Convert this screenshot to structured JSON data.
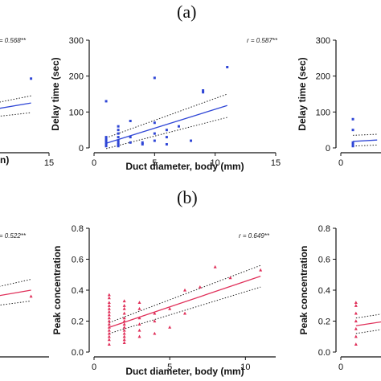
{
  "panel_labels": {
    "a": "(a)",
    "b": "(b)"
  },
  "colors": {
    "blue": "#2f46d6",
    "red": "#e0305a",
    "axis": "#111111",
    "ci": "#222222"
  },
  "chart_data": [
    {
      "id": "a-left",
      "type": "scatter",
      "partially_visible": true,
      "r_label": "r = 0.568**",
      "x_ticks": [
        "15"
      ],
      "xlabel_fragment": "n)",
      "xlim": [
        0,
        15
      ],
      "points": [
        [
          13,
          193
        ]
      ],
      "fit": {
        "x": [
          0,
          13
        ],
        "y": [
          70,
          125
        ]
      },
      "ci_upper": {
        "x": [
          0,
          13
        ],
        "y": [
          80,
          145
        ]
      },
      "ci_lower": {
        "x": [
          0,
          13
        ],
        "y": [
          62,
          98
        ]
      }
    },
    {
      "id": "a-center",
      "type": "scatter",
      "title": "",
      "xlabel": "Duct diameter, body (mm)",
      "ylabel": "Delay time (sec)",
      "r_label": "r = 0.587**",
      "xlim": [
        0,
        15
      ],
      "ylim": [
        0,
        300
      ],
      "x_ticks": [
        "0",
        "5",
        "10",
        "15"
      ],
      "y_ticks": [
        "0",
        "100",
        "200",
        "300"
      ],
      "color": "#2f46d6",
      "points": [
        [
          1,
          5
        ],
        [
          1,
          10
        ],
        [
          1,
          15
        ],
        [
          1,
          20
        ],
        [
          1,
          25
        ],
        [
          1,
          30
        ],
        [
          1,
          130
        ],
        [
          2,
          5
        ],
        [
          2,
          10
        ],
        [
          2,
          15
        ],
        [
          2,
          20
        ],
        [
          2,
          30
        ],
        [
          2,
          40
        ],
        [
          2,
          50
        ],
        [
          2,
          60
        ],
        [
          3,
          15
        ],
        [
          3,
          30
        ],
        [
          3,
          75
        ],
        [
          4,
          10
        ],
        [
          4,
          15
        ],
        [
          5,
          20
        ],
        [
          5,
          40
        ],
        [
          5,
          70
        ],
        [
          5,
          195
        ],
        [
          6,
          10
        ],
        [
          6,
          30
        ],
        [
          6,
          50
        ],
        [
          7,
          60
        ],
        [
          8,
          20
        ],
        [
          9,
          155
        ],
        [
          9,
          160
        ],
        [
          11,
          225
        ]
      ],
      "fit": {
        "x": [
          1,
          11
        ],
        "y": [
          13,
          118
        ]
      },
      "ci_upper": {
        "x": [
          1,
          11
        ],
        "y": [
          28,
          150
        ]
      },
      "ci_lower": {
        "x": [
          1,
          11
        ],
        "y": [
          -2,
          85
        ]
      }
    },
    {
      "id": "a-right",
      "type": "scatter",
      "partially_visible": true,
      "ylabel": "Delay time (sec)",
      "xlim": [
        0,
        15
      ],
      "ylim": [
        0,
        300
      ],
      "x_ticks": [
        "0"
      ],
      "y_ticks": [
        "0",
        "100",
        "200",
        "300"
      ],
      "points": [
        [
          1,
          5
        ],
        [
          1,
          10
        ],
        [
          1,
          15
        ],
        [
          1,
          50
        ],
        [
          1,
          80
        ]
      ],
      "fit": {
        "x": [
          1,
          3
        ],
        "y": [
          18,
          22
        ]
      },
      "ci_upper": {
        "x": [
          1,
          3
        ],
        "y": [
          35,
          38
        ]
      },
      "ci_lower": {
        "x": [
          1,
          3
        ],
        "y": [
          5,
          8
        ]
      }
    },
    {
      "id": "b-left",
      "type": "scatter",
      "partially_visible": true,
      "r_label": "r = 0.522**",
      "xlim": [
        0,
        15
      ],
      "points": [
        [
          13,
          0.36
        ]
      ],
      "fit": {
        "x": [
          0,
          13
        ],
        "y": [
          0.27,
          0.4
        ]
      },
      "ci_upper": {
        "x": [
          0,
          13
        ],
        "y": [
          0.3,
          0.47
        ]
      },
      "ci_lower": {
        "x": [
          0,
          13
        ],
        "y": [
          0.23,
          0.33
        ]
      }
    },
    {
      "id": "b-center",
      "type": "scatter",
      "xlabel": "Duct diameter, body (mm)",
      "ylabel": "Peak concentration",
      "r_label": "r = 0.649**",
      "xlim": [
        0,
        12
      ],
      "ylim": [
        0,
        0.8
      ],
      "x_ticks": [
        "0",
        "5",
        "10"
      ],
      "y_ticks": [
        "0.0",
        "0.2",
        "0.4",
        "0.6",
        "0.8"
      ],
      "color": "#e0305a",
      "points": [
        [
          1,
          0.05
        ],
        [
          1,
          0.08
        ],
        [
          1,
          0.1
        ],
        [
          1,
          0.12
        ],
        [
          1,
          0.14
        ],
        [
          1,
          0.16
        ],
        [
          1,
          0.18
        ],
        [
          1,
          0.2
        ],
        [
          1,
          0.22
        ],
        [
          1,
          0.24
        ],
        [
          1,
          0.26
        ],
        [
          1,
          0.28
        ],
        [
          1,
          0.3
        ],
        [
          1,
          0.32
        ],
        [
          1,
          0.35
        ],
        [
          1,
          0.37
        ],
        [
          2,
          0.06
        ],
        [
          2,
          0.08
        ],
        [
          2,
          0.1
        ],
        [
          2,
          0.12
        ],
        [
          2,
          0.14
        ],
        [
          2,
          0.16
        ],
        [
          2,
          0.18
        ],
        [
          2,
          0.2
        ],
        [
          2,
          0.22
        ],
        [
          2,
          0.25
        ],
        [
          2,
          0.28
        ],
        [
          2,
          0.3
        ],
        [
          2,
          0.33
        ],
        [
          3,
          0.1
        ],
        [
          3,
          0.14
        ],
        [
          3,
          0.18
        ],
        [
          3,
          0.22
        ],
        [
          3,
          0.28
        ],
        [
          3,
          0.32
        ],
        [
          4,
          0.12
        ],
        [
          4,
          0.2
        ],
        [
          4,
          0.25
        ],
        [
          5,
          0.16
        ],
        [
          5,
          0.28
        ],
        [
          6,
          0.25
        ],
        [
          6,
          0.4
        ],
        [
          7,
          0.42
        ],
        [
          8,
          0.55
        ],
        [
          9,
          0.48
        ],
        [
          11,
          0.53
        ]
      ],
      "fit": {
        "x": [
          1,
          11
        ],
        "y": [
          0.16,
          0.49
        ]
      },
      "ci_upper": {
        "x": [
          1,
          11
        ],
        "y": [
          0.19,
          0.56
        ]
      },
      "ci_lower": {
        "x": [
          1,
          11
        ],
        "y": [
          0.12,
          0.42
        ]
      }
    },
    {
      "id": "b-right",
      "type": "scatter",
      "partially_visible": true,
      "ylabel": "Peak concentration",
      "xlim": [
        0,
        12
      ],
      "ylim": [
        0,
        0.8
      ],
      "x_ticks": [
        "0"
      ],
      "y_ticks": [
        "0.0",
        "0.2",
        "0.4",
        "0.6",
        "0.8"
      ],
      "points": [
        [
          1,
          0.05
        ],
        [
          1,
          0.1
        ],
        [
          1,
          0.15
        ],
        [
          1,
          0.2
        ],
        [
          1,
          0.25
        ],
        [
          1,
          0.3
        ],
        [
          1,
          0.32
        ]
      ],
      "fit": {
        "x": [
          1,
          3
        ],
        "y": [
          0.17,
          0.2
        ]
      },
      "ci_upper": {
        "x": [
          1,
          3
        ],
        "y": [
          0.22,
          0.25
        ]
      },
      "ci_lower": {
        "x": [
          1,
          3
        ],
        "y": [
          0.12,
          0.15
        ]
      }
    }
  ]
}
